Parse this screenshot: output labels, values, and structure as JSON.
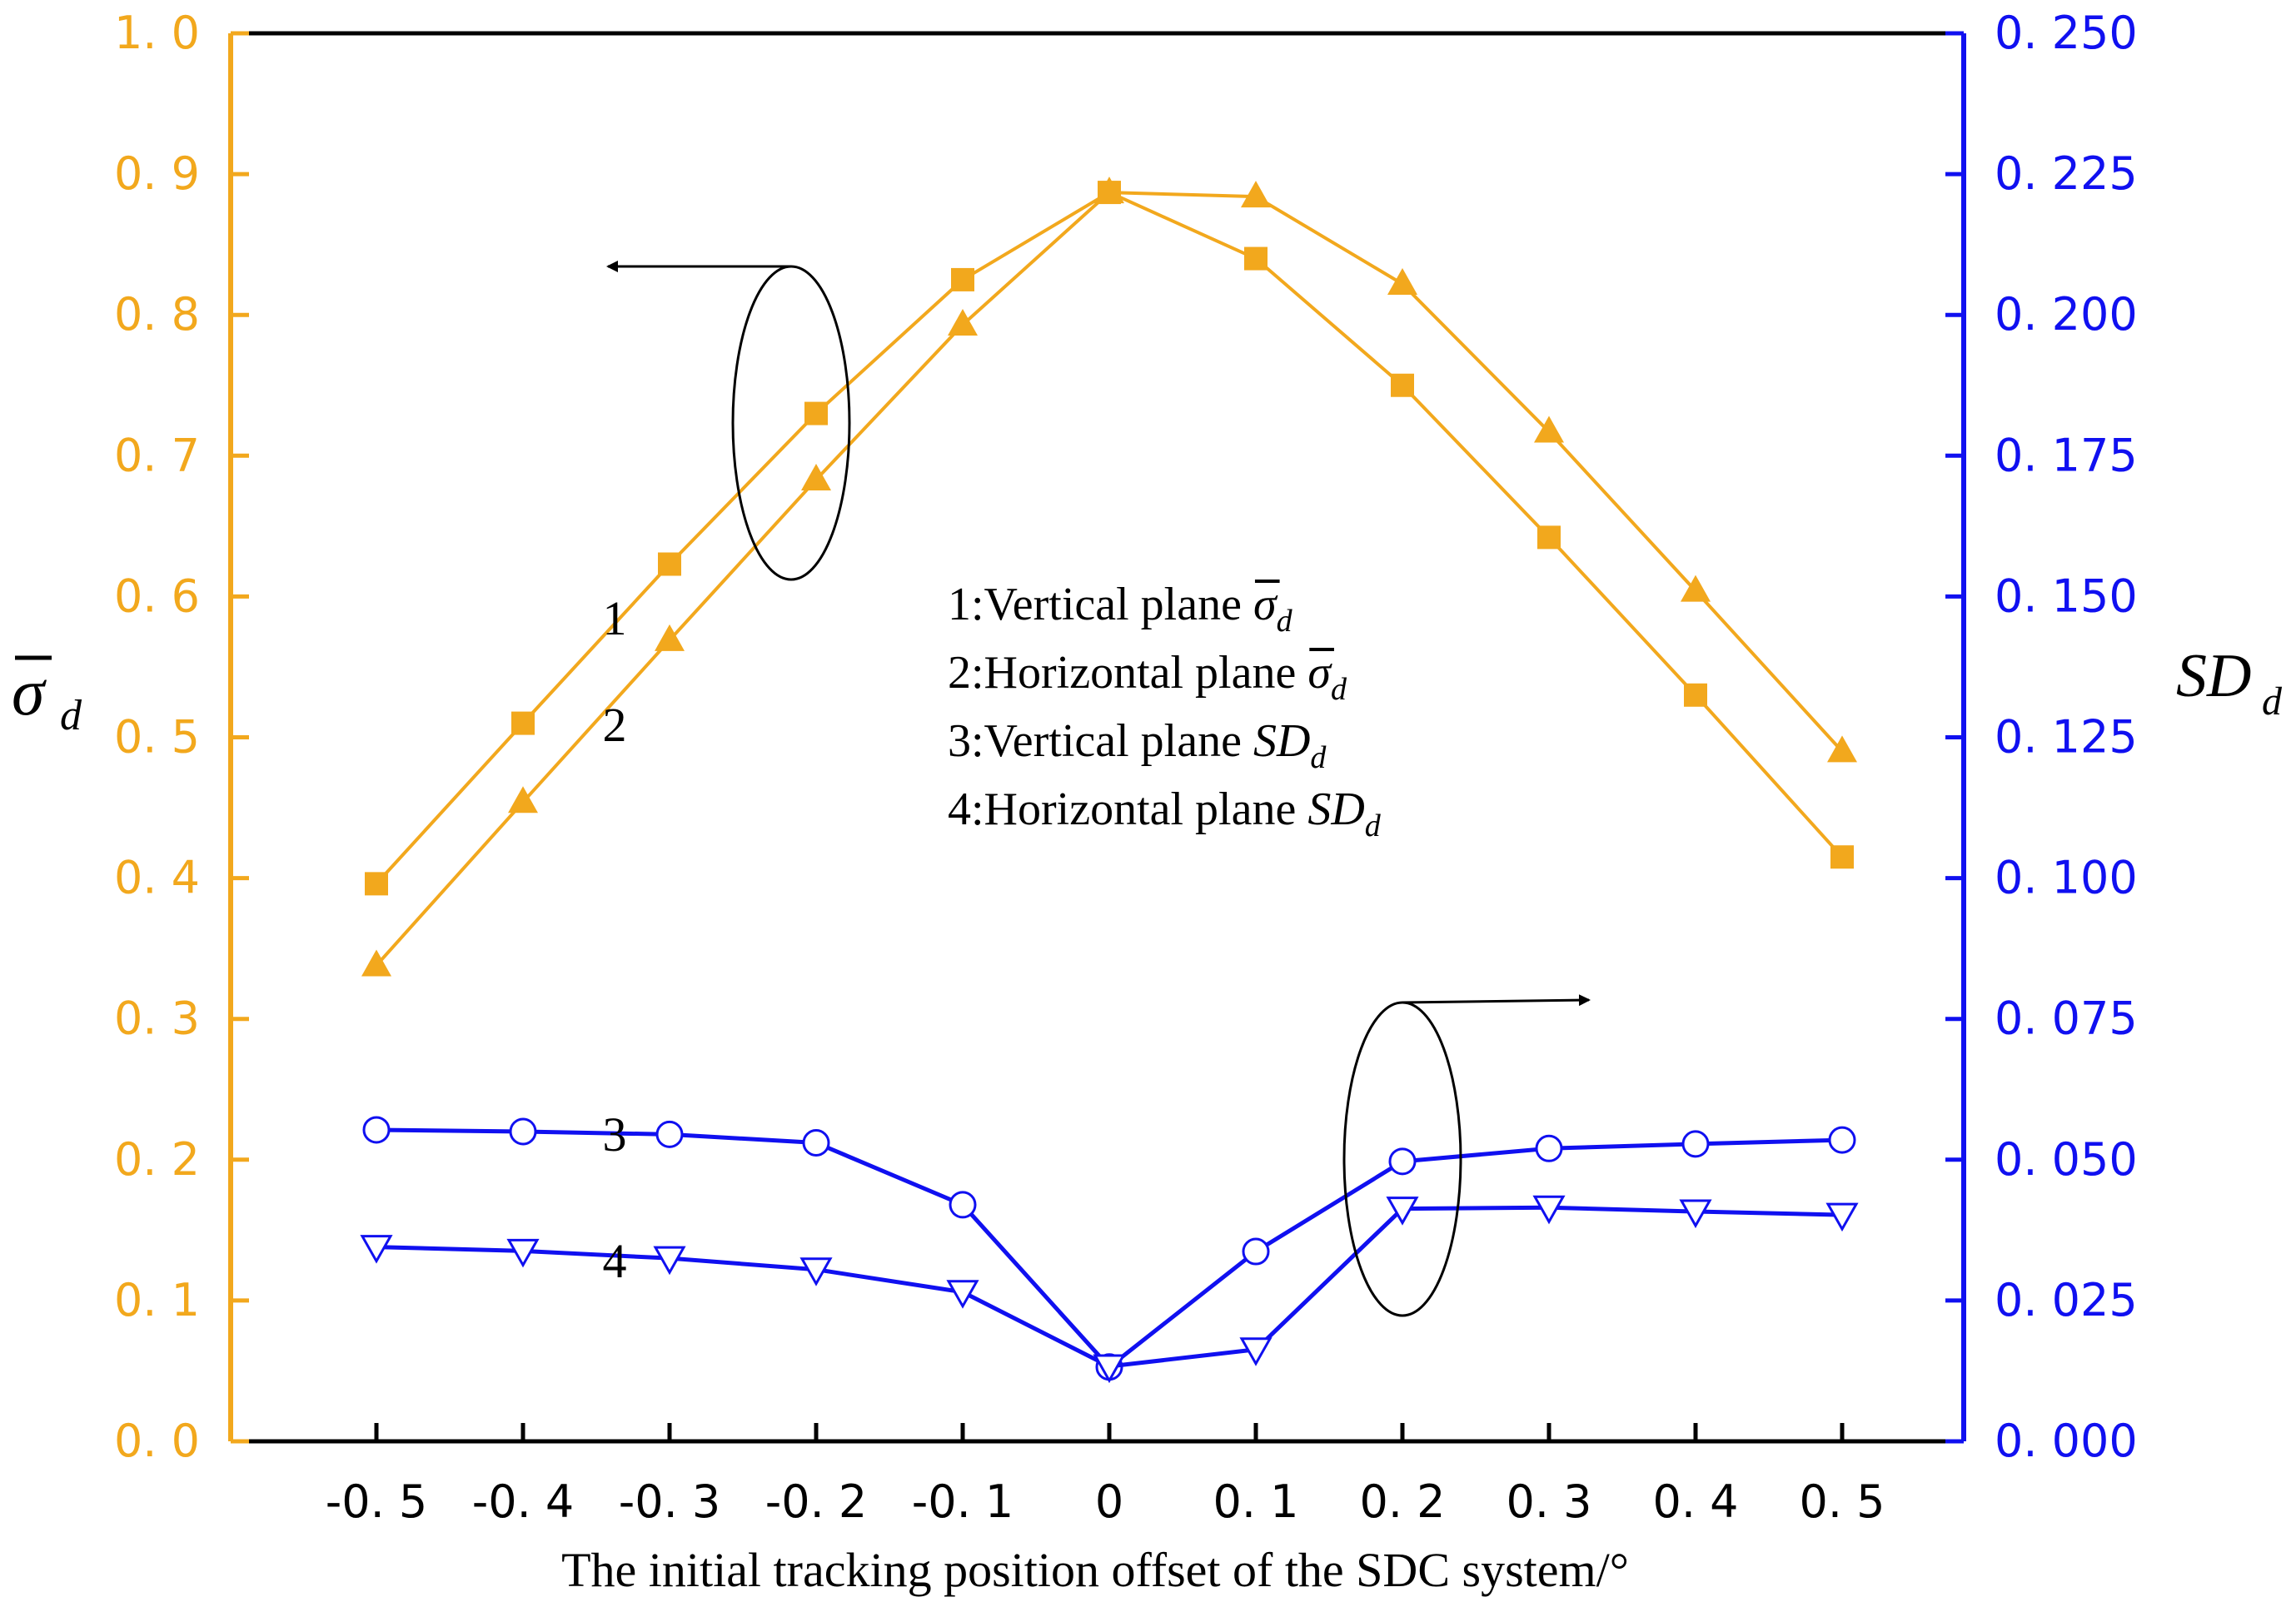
{
  "chart_data": {
    "type": "line",
    "x": [
      -0.5,
      -0.4,
      -0.3,
      -0.2,
      -0.1,
      0,
      0.1,
      0.2,
      0.3,
      0.4,
      0.5
    ],
    "x_tick_labels": [
      "-0. 5",
      "-0. 4",
      "-0. 3",
      "-0. 2",
      "-0. 1",
      "0",
      "0. 1",
      "0. 2",
      "0. 3",
      "0. 4",
      "0. 5"
    ],
    "xlabel": "The initial tracking position offset of the SDC system/°",
    "left_axis": {
      "label_symbol": "σ",
      "label_subscript": "d",
      "ylim": [
        0,
        1.0
      ],
      "ticks": [
        0,
        0.1,
        0.2,
        0.3,
        0.4,
        0.5,
        0.6,
        0.7,
        0.8,
        0.9,
        1.0
      ],
      "tick_labels": [
        "0. 0",
        "0. 1",
        "0. 2",
        "0. 3",
        "0. 4",
        "0. 5",
        "0. 6",
        "0. 7",
        "0. 8",
        "0. 9",
        "1. 0"
      ],
      "color": "#F2A81D"
    },
    "right_axis": {
      "label_symbol": "SD",
      "label_subscript": "d",
      "ylim": [
        0,
        0.25
      ],
      "ticks": [
        0,
        0.025,
        0.05,
        0.075,
        0.1,
        0.125,
        0.15,
        0.175,
        0.2,
        0.225,
        0.25
      ],
      "tick_labels": [
        "0. 000",
        "0. 025",
        "0. 050",
        "0. 075",
        "0. 100",
        "0. 125",
        "0. 150",
        "0. 175",
        "0. 200",
        "0. 225",
        "0. 250"
      ],
      "color": "#1010F0"
    },
    "series": [
      {
        "id": "1",
        "name": "Vertical plane σ̄d",
        "axis": "left",
        "marker": "square",
        "color": "#F2A81D",
        "values": [
          0.396,
          0.51,
          0.623,
          0.73,
          0.825,
          0.887,
          0.84,
          0.75,
          0.642,
          0.53,
          0.415
        ]
      },
      {
        "id": "2",
        "name": "Horizontal plane σ̄d",
        "axis": "left",
        "marker": "triangle-up",
        "color": "#F2A81D",
        "values": [
          0.338,
          0.454,
          0.569,
          0.683,
          0.793,
          0.887,
          0.884,
          0.822,
          0.717,
          0.604,
          0.49
        ]
      },
      {
        "id": "3",
        "name": "Vertical plane SDd",
        "axis": "right",
        "marker": "circle-open",
        "color": "#1010F0",
        "values": [
          0.0553,
          0.055,
          0.0545,
          0.053,
          0.042,
          0.0132,
          0.0337,
          0.0497,
          0.052,
          0.0528,
          0.0535
        ]
      },
      {
        "id": "4",
        "name": "Horizontal plane SDd",
        "axis": "right",
        "marker": "triangle-down-open",
        "color": "#1010F0",
        "values": [
          0.0345,
          0.0338,
          0.0325,
          0.0305,
          0.0265,
          0.0133,
          0.0163,
          0.0413,
          0.0415,
          0.0408,
          0.0402
        ]
      }
    ],
    "curve_labels": [
      "1",
      "2",
      "3",
      "4"
    ],
    "legend": {
      "placement": "center",
      "entries": [
        {
          "prefix": "1:Vertical plane ",
          "symbol": "σ",
          "sub": "d"
        },
        {
          "prefix": "2:Horizontal plane ",
          "symbol": "σ",
          "sub": "d"
        },
        {
          "prefix": "3:Vertical plane ",
          "symbol": "SD",
          "sub": "d"
        },
        {
          "prefix": "4:Horizontal plane ",
          "symbol": "SD",
          "sub": "d"
        }
      ]
    },
    "annotations": [
      {
        "type": "ellipse-arrow",
        "groups_series": [
          "1",
          "2"
        ],
        "points_to": "left-axis"
      },
      {
        "type": "ellipse-arrow",
        "groups_series": [
          "3",
          "4"
        ],
        "points_to": "right-axis"
      }
    ]
  }
}
